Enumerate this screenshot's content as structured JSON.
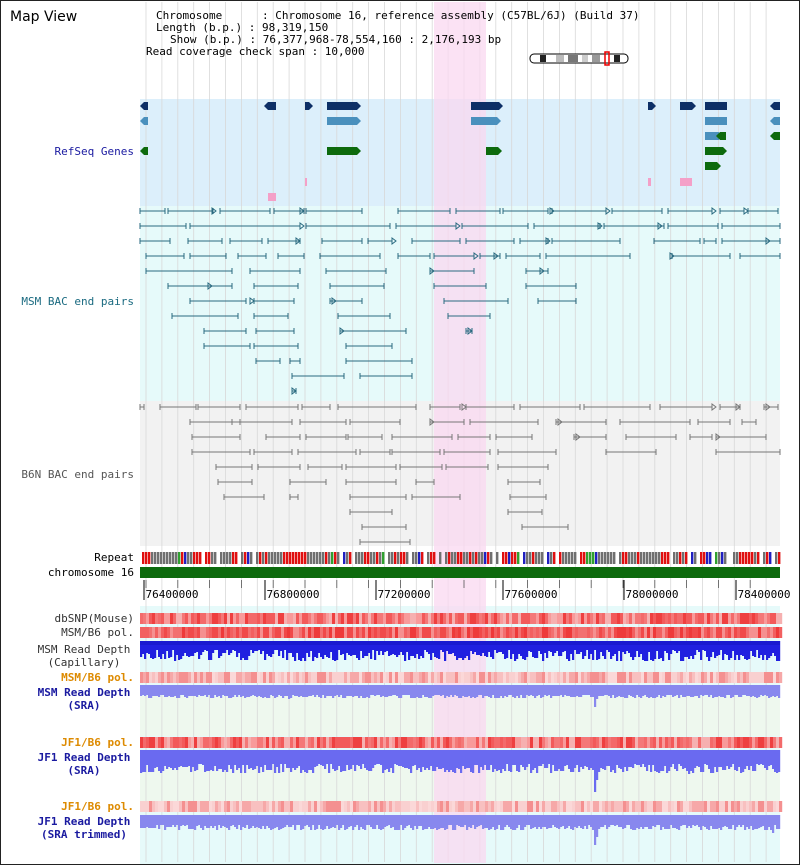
{
  "header": {
    "title": "Map View",
    "chromosome_line": "Chromosome      : Chromosome 16, reference assembly (C57BL/6J) (Build 37)",
    "length_line": "Length (b.p.) : 98,319,150",
    "show_line": "Show (b.p.) : 76,377,968-78,554,160 : 2,176,193 bp",
    "coverage_line": "Read coverage check span : 10,000"
  },
  "tracks": {
    "refseq": "RefSeq Genes",
    "msm_bac": "MSM BAC end pairs",
    "b6n_bac": "B6N BAC end pairs",
    "repeat": "Repeat",
    "chromosome": "chromosome 16",
    "dbsnp": "dbSNP(Mouse)",
    "msm_b6_pol_cap": "MSM/B6 pol.",
    "msm_depth_cap_1": "MSM Read Depth",
    "msm_depth_cap_2": "(Capillary)",
    "msm_b6_pol_sra": "MSM/B6 pol.",
    "msm_depth_sra_1": "MSM Read Depth",
    "msm_depth_sra_2": "(SRA)",
    "jf1_b6_pol": "JF1/B6 pol.",
    "jf1_depth_1": "JF1 Read Depth",
    "jf1_depth_2": "(SRA)",
    "jf1_b6_pol_trim": "JF1/B6 pol.",
    "jf1_depth_trim_1": "JF1 Read Depth",
    "jf1_depth_trim_2": "(SRA trimmed)"
  },
  "axis": {
    "ticks": [
      "76400000",
      "76800000",
      "77200000",
      "77600000",
      "78000000",
      "78400000"
    ]
  },
  "colors": {
    "refseq_bg": "#dceffb",
    "msm_bg": "#e6fafa",
    "highlight": "#f9d8f0",
    "gene_dark": "#0d2f66",
    "gene_mid": "#4a90bd",
    "gene_green": "#0d6a0d",
    "msm_line": "#2a6a80",
    "b6n_line": "#777777",
    "label_blue": "#1a1aa0",
    "label_orange": "#dd8a00",
    "label_teal": "#1a6a80"
  }
}
